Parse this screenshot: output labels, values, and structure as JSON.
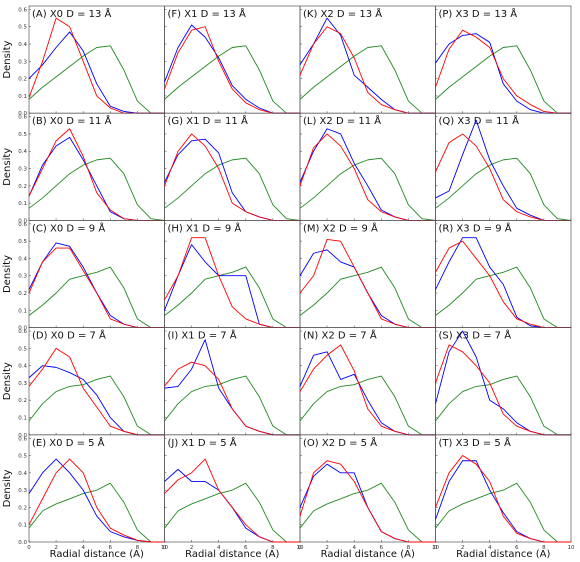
{
  "figure": {
    "ylabel": "Density",
    "xlabel": "Radial distance (A)"
  },
  "colors": {
    "red": "#ff0000",
    "blue": "#0000ff",
    "green": "#228b22"
  },
  "chart_data": {
    "type": "line",
    "layout": "grid 5 rows x 4 columns",
    "x": [
      0,
      1,
      2,
      3,
      4,
      5,
      6,
      7,
      8,
      9,
      10
    ],
    "xlim": [
      0,
      10
    ],
    "ylim": [
      0,
      0.62
    ],
    "xticks": [
      "0",
      "2",
      "4",
      "6",
      "8",
      "10"
    ],
    "yticks": [
      "0.0",
      "0.1",
      "0.2",
      "0.3",
      "0.4",
      "0.5",
      "0.6"
    ],
    "green_series": {
      "13": [
        0.08,
        0.15,
        0.21,
        0.27,
        0.33,
        0.38,
        0.39,
        0.25,
        0.07,
        0.0,
        0.0
      ],
      "11": [
        0.07,
        0.13,
        0.2,
        0.27,
        0.32,
        0.35,
        0.36,
        0.27,
        0.09,
        0.01,
        0.0
      ],
      "9": [
        0.07,
        0.13,
        0.2,
        0.28,
        0.3,
        0.32,
        0.35,
        0.23,
        0.05,
        0.0,
        0.0
      ],
      "7": [
        0.08,
        0.18,
        0.25,
        0.28,
        0.29,
        0.32,
        0.34,
        0.22,
        0.05,
        0.0,
        0.0
      ],
      "5": [
        0.08,
        0.18,
        0.22,
        0.25,
        0.28,
        0.3,
        0.34,
        0.23,
        0.07,
        0.0,
        0.0
      ]
    },
    "panels": [
      {
        "label": "(A) X0 D = 13 Å",
        "red": [
          0.09,
          0.3,
          0.55,
          0.5,
          0.3,
          0.1,
          0.03,
          0.0,
          0.0,
          0.0,
          0.0
        ],
        "blue": [
          0.2,
          0.28,
          0.38,
          0.47,
          0.36,
          0.17,
          0.04,
          0.01,
          0.0,
          0.0,
          0.0
        ],
        "green_key": "13"
      },
      {
        "label": "(F) X1 D = 13 Å",
        "red": [
          0.14,
          0.35,
          0.48,
          0.5,
          0.3,
          0.14,
          0.06,
          0.02,
          0.0,
          0.0,
          0.0
        ],
        "blue": [
          0.18,
          0.38,
          0.51,
          0.44,
          0.32,
          0.16,
          0.08,
          0.03,
          0.0,
          0.0,
          0.0
        ],
        "green_key": "13"
      },
      {
        "label": "(K) X2 D = 13 Å",
        "red": [
          0.22,
          0.4,
          0.5,
          0.46,
          0.32,
          0.12,
          0.05,
          0.02,
          0.0,
          0.0,
          0.0
        ],
        "blue": [
          0.28,
          0.4,
          0.55,
          0.45,
          0.22,
          0.15,
          0.08,
          0.02,
          0.0,
          0.0,
          0.0
        ],
        "green_key": "13"
      },
      {
        "label": "(P) X3 D = 13 Å",
        "red": [
          0.15,
          0.37,
          0.48,
          0.44,
          0.38,
          0.2,
          0.1,
          0.05,
          0.01,
          0.0,
          0.0
        ],
        "blue": [
          0.29,
          0.4,
          0.45,
          0.46,
          0.41,
          0.17,
          0.07,
          0.02,
          0.0,
          0.0,
          0.0
        ],
        "green_key": "13"
      },
      {
        "label": "(B) X0 D = 11 Å",
        "red": [
          0.14,
          0.3,
          0.46,
          0.53,
          0.37,
          0.16,
          0.06,
          0.01,
          0.0,
          0.0,
          0.0
        ],
        "blue": [
          0.14,
          0.32,
          0.43,
          0.48,
          0.35,
          0.2,
          0.05,
          0.01,
          0.0,
          0.0,
          0.0
        ],
        "green_key": "11"
      },
      {
        "label": "(G) X1 D = 11 Å",
        "red": [
          0.2,
          0.4,
          0.5,
          0.43,
          0.3,
          0.1,
          0.05,
          0.02,
          0.0,
          0.0,
          0.0
        ],
        "blue": [
          0.22,
          0.38,
          0.46,
          0.47,
          0.39,
          0.16,
          0.05,
          0.02,
          0.0,
          0.0,
          0.0
        ],
        "green_key": "11"
      },
      {
        "label": "(L) X2 D = 11 Å",
        "red": [
          0.2,
          0.42,
          0.5,
          0.43,
          0.3,
          0.12,
          0.05,
          0.02,
          0.0,
          0.0,
          0.0
        ],
        "blue": [
          0.22,
          0.4,
          0.53,
          0.5,
          0.33,
          0.2,
          0.06,
          0.02,
          0.0,
          0.0,
          0.0
        ],
        "green_key": "11"
      },
      {
        "label": "(Q) X3 D = 11 Å",
        "red": [
          0.28,
          0.45,
          0.5,
          0.43,
          0.3,
          0.12,
          0.05,
          0.02,
          0.0,
          0.0,
          0.0
        ],
        "blue": [
          0.13,
          0.17,
          0.38,
          0.58,
          0.35,
          0.2,
          0.07,
          0.03,
          0.0,
          0.0,
          0.0
        ],
        "green_key": "11"
      },
      {
        "label": "(C) X0 D = 9 Å",
        "red": [
          0.2,
          0.38,
          0.46,
          0.46,
          0.33,
          0.2,
          0.05,
          0.02,
          0.0,
          0.0,
          0.0
        ],
        "blue": [
          0.22,
          0.38,
          0.49,
          0.47,
          0.35,
          0.2,
          0.07,
          0.02,
          0.0,
          0.0,
          0.0
        ],
        "green_key": "9"
      },
      {
        "label": "(H) X1 D = 9 Å",
        "red": [
          0.16,
          0.3,
          0.52,
          0.52,
          0.3,
          0.12,
          0.05,
          0.02,
          0.0,
          0.0,
          0.0
        ],
        "blue": [
          0.1,
          0.3,
          0.48,
          0.38,
          0.3,
          0.3,
          0.3,
          0.02,
          0.0,
          0.0,
          0.0
        ],
        "green_key": "9"
      },
      {
        "label": "(M) X2 D = 9 Å",
        "red": [
          0.2,
          0.3,
          0.51,
          0.5,
          0.35,
          0.2,
          0.05,
          0.02,
          0.0,
          0.0,
          0.0
        ],
        "blue": [
          0.3,
          0.43,
          0.45,
          0.38,
          0.35,
          0.2,
          0.07,
          0.02,
          0.0,
          0.0,
          0.0
        ],
        "green_key": "9"
      },
      {
        "label": "(R) X3 D = 9 Å",
        "red": [
          0.32,
          0.46,
          0.5,
          0.4,
          0.3,
          0.15,
          0.05,
          0.02,
          0.0,
          0.0,
          0.0
        ],
        "blue": [
          0.22,
          0.38,
          0.52,
          0.52,
          0.35,
          0.25,
          0.06,
          0.01,
          0.0,
          0.0,
          0.0
        ],
        "green_key": "9"
      },
      {
        "label": "(D) X0 D = 7 Å",
        "red": [
          0.28,
          0.38,
          0.5,
          0.45,
          0.27,
          0.16,
          0.05,
          0.02,
          0.0,
          0.0,
          0.0
        ],
        "blue": [
          0.33,
          0.4,
          0.39,
          0.36,
          0.32,
          0.23,
          0.1,
          0.02,
          0.0,
          0.0,
          0.0
        ],
        "green_key": "7"
      },
      {
        "label": "(I) X1 D = 7 Å",
        "red": [
          0.28,
          0.38,
          0.42,
          0.4,
          0.32,
          0.15,
          0.05,
          0.02,
          0.0,
          0.0,
          0.0
        ],
        "blue": [
          0.27,
          0.28,
          0.38,
          0.55,
          0.27,
          0.15,
          0.05,
          0.02,
          0.0,
          0.0,
          0.0
        ],
        "green_key": "7"
      },
      {
        "label": "(N) X2 D = 7 Å",
        "red": [
          0.25,
          0.38,
          0.46,
          0.52,
          0.37,
          0.15,
          0.05,
          0.02,
          0.0,
          0.0,
          0.0
        ],
        "blue": [
          0.28,
          0.46,
          0.48,
          0.32,
          0.35,
          0.2,
          0.07,
          0.02,
          0.0,
          0.0,
          0.0
        ],
        "green_key": "7"
      },
      {
        "label": "(S) X3 D = 7 Å",
        "red": [
          0.3,
          0.52,
          0.48,
          0.4,
          0.3,
          0.12,
          0.05,
          0.02,
          0.0,
          0.0,
          0.0
        ],
        "blue": [
          0.18,
          0.48,
          0.6,
          0.45,
          0.2,
          0.15,
          0.07,
          0.02,
          0.0,
          0.0,
          0.0
        ],
        "green_key": "7"
      },
      {
        "label": "(E) X0 D = 5 Å",
        "red": [
          0.1,
          0.25,
          0.4,
          0.48,
          0.4,
          0.2,
          0.08,
          0.04,
          0.01,
          0.0,
          0.0
        ],
        "blue": [
          0.28,
          0.4,
          0.48,
          0.4,
          0.3,
          0.15,
          0.06,
          0.03,
          0.01,
          0.0,
          0.0
        ],
        "green_key": "5"
      },
      {
        "label": "(J) X1 D = 5 Å",
        "red": [
          0.28,
          0.36,
          0.4,
          0.48,
          0.3,
          0.2,
          0.1,
          0.03,
          0.0,
          0.0,
          0.0
        ],
        "blue": [
          0.35,
          0.42,
          0.35,
          0.35,
          0.3,
          0.2,
          0.08,
          0.03,
          0.0,
          0.0,
          0.0
        ],
        "green_key": "5"
      },
      {
        "label": "(O) X2 D = 5 Å",
        "red": [
          0.15,
          0.4,
          0.47,
          0.45,
          0.35,
          0.2,
          0.06,
          0.02,
          0.0,
          0.0,
          0.0
        ],
        "blue": [
          0.2,
          0.38,
          0.45,
          0.4,
          0.4,
          0.2,
          0.06,
          0.02,
          0.0,
          0.0,
          0.0
        ],
        "green_key": "5"
      },
      {
        "label": "(T) X3 D = 5 Å",
        "red": [
          0.2,
          0.4,
          0.5,
          0.45,
          0.35,
          0.15,
          0.05,
          0.02,
          0.0,
          0.0,
          0.0
        ],
        "blue": [
          0.13,
          0.35,
          0.47,
          0.47,
          0.3,
          0.17,
          0.06,
          0.02,
          0.0,
          0.0,
          0.0
        ],
        "green_key": "5"
      }
    ]
  }
}
